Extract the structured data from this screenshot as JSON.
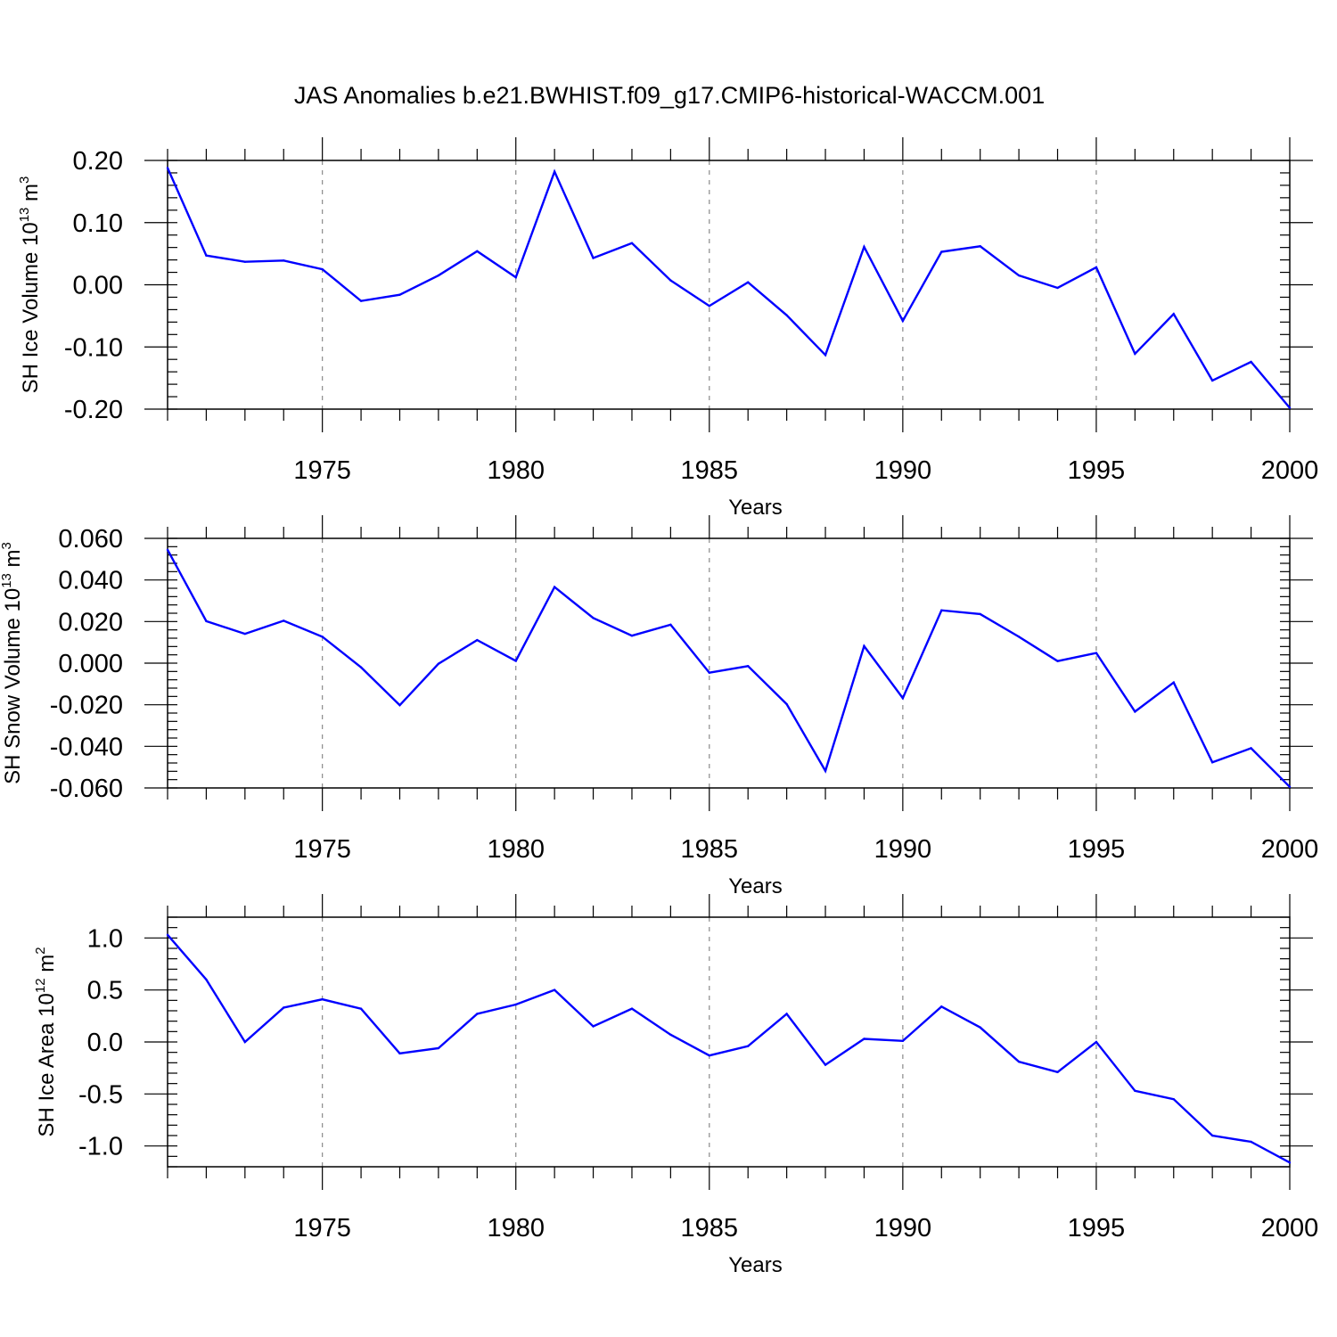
{
  "figure_title": "JAS Anomalies b.e21.BWHIST.f09_g17.CMIP6-historical-WACCM.001",
  "colors": {
    "series": "#0000ff",
    "grid": "#8a8a8a",
    "axis": "#000000"
  },
  "chart_data": [
    {
      "type": "line",
      "ylabel": {
        "main": "SH Ice Volume 10",
        "exp": "13",
        "unit": " m",
        "unit_exp": "3"
      },
      "xlabel": "Years",
      "xlim": [
        1971,
        2000
      ],
      "ylim": [
        -0.2,
        0.2
      ],
      "x_major_ticks": [
        1975,
        1980,
        1985,
        1990,
        1995,
        2000
      ],
      "x_tick_labels": [
        "1975",
        "1980",
        "1985",
        "1990",
        "1995",
        "2000"
      ],
      "y_ticks": [
        0.2,
        0.1,
        0.0,
        -0.1,
        -0.2
      ],
      "y_tick_labels": [
        "0.20",
        "0.10",
        "0.00",
        "-0.10",
        "-0.20"
      ],
      "y_minor_step": 0.02,
      "grid": "x-dashed",
      "x": [
        1971,
        1972,
        1973,
        1974,
        1975,
        1976,
        1977,
        1978,
        1979,
        1980,
        1981,
        1982,
        1983,
        1984,
        1985,
        1986,
        1987,
        1988,
        1989,
        1990,
        1991,
        1992,
        1993,
        1994,
        1995,
        1996,
        1997,
        1998,
        1999,
        2000
      ],
      "values": [
        0.188,
        0.047,
        0.037,
        0.039,
        0.025,
        -0.026,
        -0.016,
        0.015,
        0.054,
        0.012,
        0.182,
        0.043,
        0.067,
        0.007,
        -0.034,
        0.004,
        -0.049,
        -0.113,
        0.061,
        -0.058,
        0.053,
        0.062,
        0.015,
        -0.005,
        0.028,
        -0.111,
        -0.047,
        -0.154,
        -0.124,
        -0.198
      ]
    },
    {
      "type": "line",
      "ylabel": {
        "main": "SH Snow Volume 10",
        "exp": "13",
        "unit": " m",
        "unit_exp": "3"
      },
      "xlabel": "Years",
      "xlim": [
        1971,
        2000
      ],
      "ylim": [
        -0.06,
        0.06
      ],
      "x_major_ticks": [
        1975,
        1980,
        1985,
        1990,
        1995,
        2000
      ],
      "x_tick_labels": [
        "1975",
        "1980",
        "1985",
        "1990",
        "1995",
        "2000"
      ],
      "y_ticks": [
        0.06,
        0.04,
        0.02,
        0.0,
        -0.02,
        -0.04,
        -0.06
      ],
      "y_tick_labels": [
        "0.060",
        "0.040",
        "0.020",
        "0.000",
        "-0.020",
        "-0.040",
        "-0.060"
      ],
      "y_minor_step": 0.004,
      "grid": "x-dashed",
      "x": [
        1971,
        1972,
        1973,
        1974,
        1975,
        1976,
        1977,
        1978,
        1979,
        1980,
        1981,
        1982,
        1983,
        1984,
        1985,
        1986,
        1987,
        1988,
        1989,
        1990,
        1991,
        1992,
        1993,
        1994,
        1995,
        1996,
        1997,
        1998,
        1999,
        2000
      ],
      "values": [
        0.0545,
        0.0202,
        0.0141,
        0.0204,
        0.0127,
        -0.002,
        -0.0202,
        -0.0003,
        0.0111,
        0.0011,
        0.0366,
        0.0217,
        0.0132,
        0.0185,
        -0.0046,
        -0.0014,
        -0.0197,
        -0.0518,
        0.0082,
        -0.0168,
        0.0254,
        0.0236,
        0.0127,
        0.001,
        0.0049,
        -0.0233,
        -0.0093,
        -0.0477,
        -0.0409,
        -0.0595
      ]
    },
    {
      "type": "line",
      "ylabel": {
        "main": "SH Ice Area 10",
        "exp": "12",
        "unit": " m",
        "unit_exp": "2"
      },
      "xlabel": "Years",
      "xlim": [
        1971,
        2000
      ],
      "ylim": [
        -1.2,
        1.2
      ],
      "x_major_ticks": [
        1975,
        1980,
        1985,
        1990,
        1995,
        2000
      ],
      "x_tick_labels": [
        "1975",
        "1980",
        "1985",
        "1990",
        "1995",
        "2000"
      ],
      "y_ticks": [
        1.0,
        0.5,
        0.0,
        -0.5,
        -1.0
      ],
      "y_tick_labels": [
        "1.0",
        "0.5",
        "0.0",
        "-0.5",
        "-1.0"
      ],
      "y_minor_step": 0.1,
      "grid": "x-dashed",
      "x": [
        1971,
        1972,
        1973,
        1974,
        1975,
        1976,
        1977,
        1978,
        1979,
        1980,
        1981,
        1982,
        1983,
        1984,
        1985,
        1986,
        1987,
        1988,
        1989,
        1990,
        1991,
        1992,
        1993,
        1994,
        1995,
        1996,
        1997,
        1998,
        1999,
        2000
      ],
      "values": [
        1.03,
        0.6,
        0.0,
        0.33,
        0.41,
        0.32,
        -0.11,
        -0.06,
        0.27,
        0.36,
        0.5,
        0.15,
        0.32,
        0.07,
        -0.13,
        -0.04,
        0.27,
        -0.22,
        0.03,
        0.01,
        0.34,
        0.14,
        -0.19,
        -0.29,
        0.0,
        -0.47,
        -0.55,
        -0.9,
        -0.96,
        -1.16
      ]
    }
  ]
}
